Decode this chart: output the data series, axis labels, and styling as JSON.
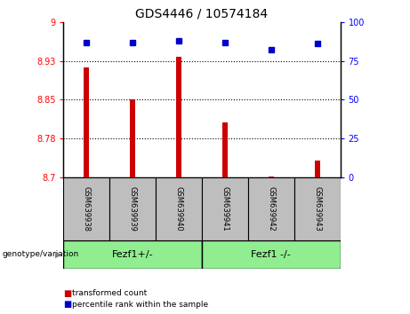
{
  "title": "GDS4446 / 10574184",
  "categories": [
    "GSM639938",
    "GSM639939",
    "GSM639940",
    "GSM639941",
    "GSM639942",
    "GSM639943"
  ],
  "bar_values": [
    8.913,
    8.85,
    8.933,
    8.807,
    8.702,
    8.733
  ],
  "percentile_values": [
    87,
    87,
    88,
    87,
    82,
    86
  ],
  "ylim_left": [
    8.7,
    9.0
  ],
  "ylim_right": [
    0,
    100
  ],
  "yticks_left": [
    8.7,
    8.775,
    8.85,
    8.925,
    9.0
  ],
  "yticks_right": [
    0,
    25,
    50,
    75,
    100
  ],
  "grid_lines": [
    8.775,
    8.85,
    8.925
  ],
  "bar_color": "#cc0000",
  "dot_color": "#0000cc",
  "group1_label": "Fezf1+/-",
  "group2_label": "Fezf1 -/-",
  "group1_indices": [
    0,
    1,
    2
  ],
  "group2_indices": [
    3,
    4,
    5
  ],
  "group_bg_color": "#90ee90",
  "tick_bg_color": "#bebebe",
  "legend_red_label": "transformed count",
  "legend_blue_label": "percentile rank within the sample",
  "bottom_label": "genotype/variation",
  "bar_width": 0.12
}
